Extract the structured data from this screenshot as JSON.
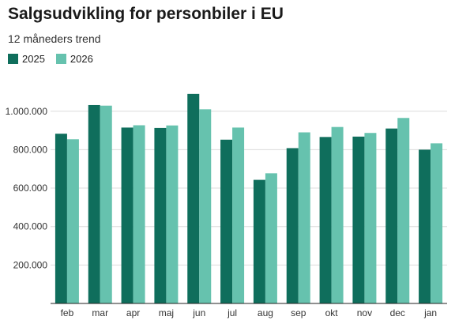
{
  "chart_data": {
    "type": "bar",
    "title": "Salgsudvikling for personbiler i EU",
    "subtitle": "12 måneders trend",
    "xlabel": "",
    "ylabel": "",
    "categories": [
      "feb",
      "mar",
      "apr",
      "maj",
      "jun",
      "jul",
      "aug",
      "sep",
      "okt",
      "nov",
      "dec",
      "jan"
    ],
    "series": [
      {
        "name": "2025",
        "color": "#0f6e5c",
        "values": [
          883000,
          1032000,
          915000,
          913000,
          1090000,
          852000,
          643000,
          808000,
          866000,
          868000,
          910000,
          800000
        ]
      },
      {
        "name": "2026",
        "color": "#66c2ae",
        "values": [
          854000,
          1029000,
          927000,
          926000,
          1010000,
          915000,
          677000,
          890000,
          918000,
          887000,
          965000,
          833000
        ]
      }
    ],
    "ylim": [
      0,
      1100000
    ],
    "yticks": [
      200000,
      400000,
      600000,
      800000,
      1000000
    ],
    "ytick_labels": [
      "200.000",
      "400.000",
      "600.000",
      "800.000",
      "1.000.000"
    ],
    "grid": true,
    "legend_position": "top-left"
  }
}
